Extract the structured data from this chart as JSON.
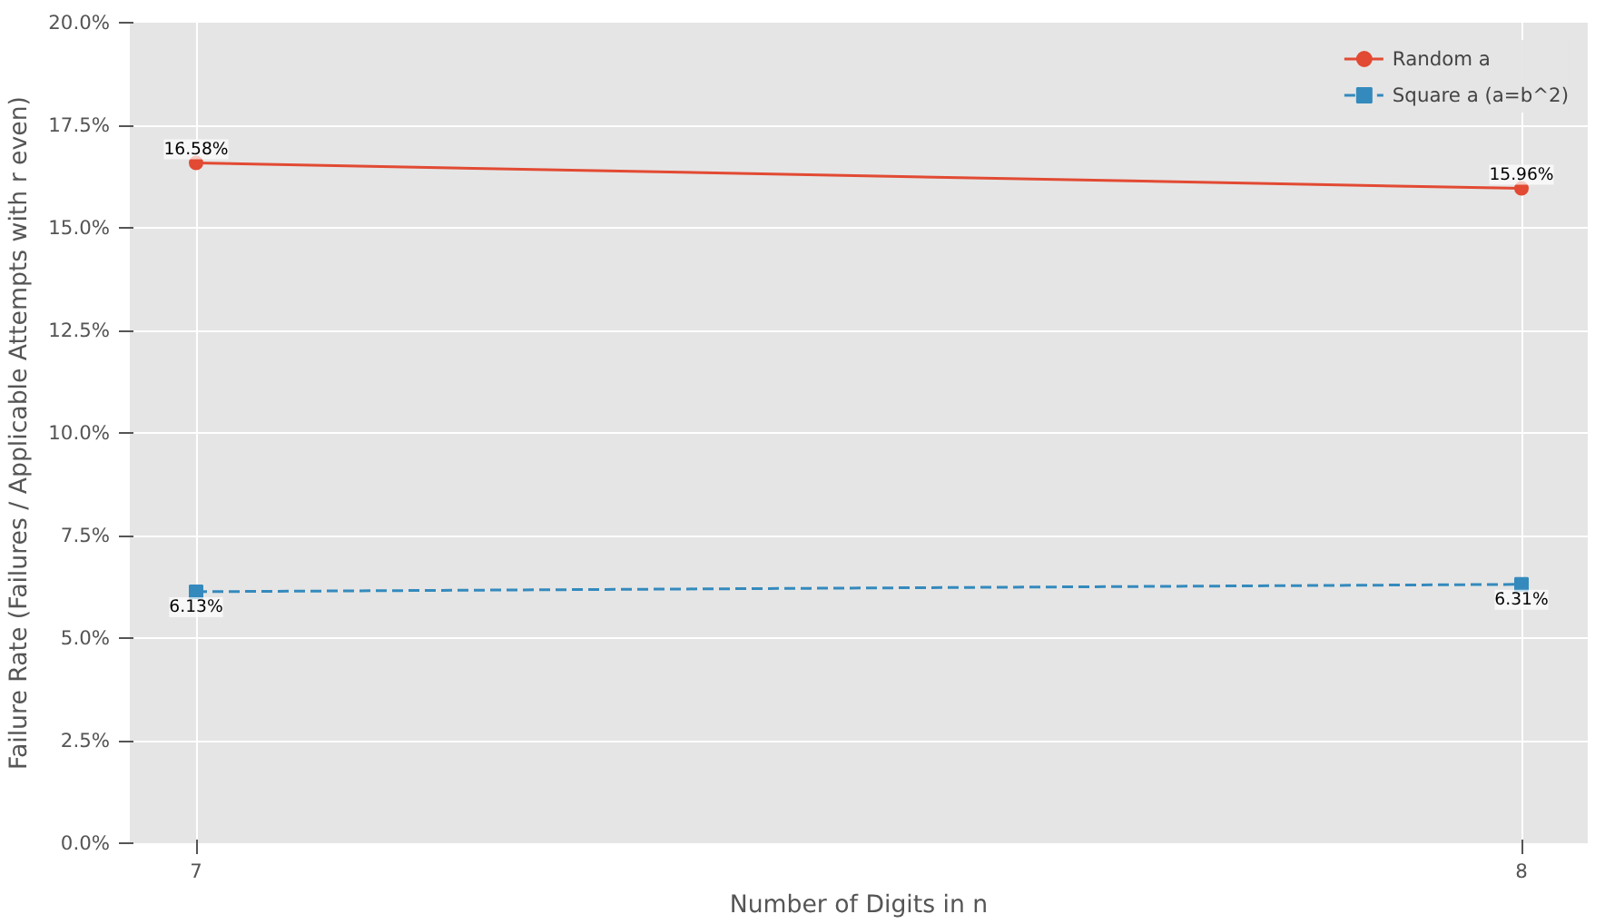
{
  "chart_data": {
    "type": "line",
    "xlabel": "Number of Digits in n",
    "ylabel": "Failure Rate (Failures / Applicable Attempts with r even)",
    "x": [
      7,
      8
    ],
    "xlim": [
      6.95,
      8.05
    ],
    "xticks": [
      7,
      8
    ],
    "ylim": [
      0,
      20
    ],
    "yticks": [
      {
        "value": 0,
        "label": "0.0%"
      },
      {
        "value": 2.5,
        "label": "2.5%"
      },
      {
        "value": 5,
        "label": "5.0%"
      },
      {
        "value": 7.5,
        "label": "7.5%"
      },
      {
        "value": 10,
        "label": "10.0%"
      },
      {
        "value": 12.5,
        "label": "12.5%"
      },
      {
        "value": 15,
        "label": "15.0%"
      },
      {
        "value": 17.5,
        "label": "17.5%"
      },
      {
        "value": 20,
        "label": "20.0%"
      }
    ],
    "series": [
      {
        "name": "Random a",
        "color": "#e24a33",
        "values": [
          16.58,
          15.96
        ],
        "marker": "circle",
        "line_style": "solid",
        "value_labels": [
          "16.58%",
          "15.96%"
        ]
      },
      {
        "name": "Square a (a=b^2)",
        "color": "#348abd",
        "values": [
          6.13,
          6.31
        ],
        "marker": "square",
        "line_style": "dashed",
        "value_labels": [
          "6.13%",
          "6.31%"
        ]
      }
    ],
    "grid": true,
    "legend": "top right"
  }
}
